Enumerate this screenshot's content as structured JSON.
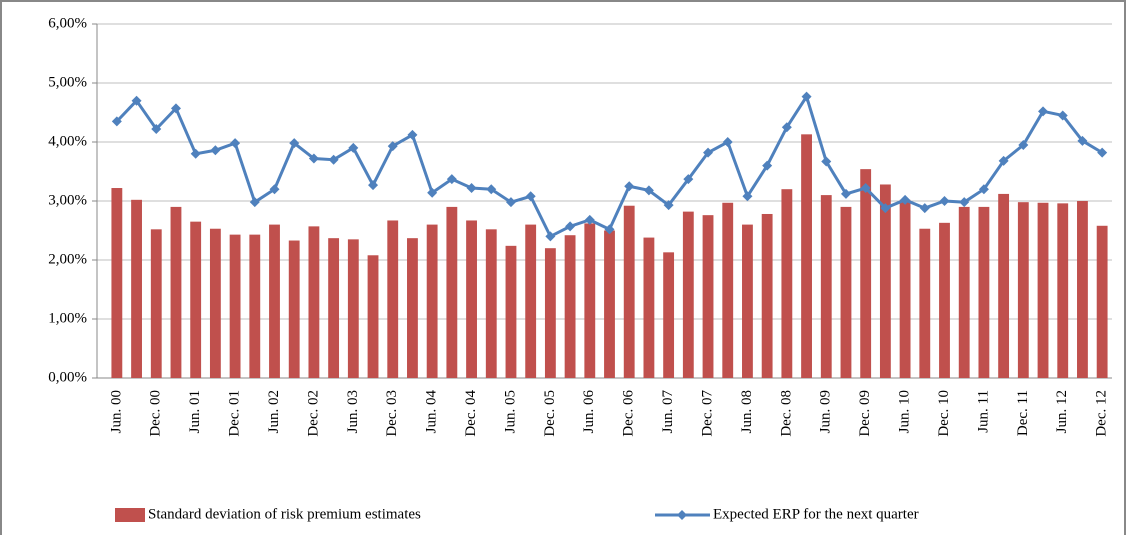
{
  "chart_data": {
    "type": "bar_line",
    "categories": [
      "Jun. 00",
      null,
      "Dec. 00",
      null,
      "Jun. 01",
      null,
      "Dec. 01",
      null,
      "Jun. 02",
      null,
      "Dec. 02",
      null,
      "Jun. 03",
      null,
      "Dec. 03",
      null,
      "Jun. 04",
      null,
      "Dec. 04",
      null,
      "Jun. 05",
      null,
      "Dec. 05",
      null,
      "Jun. 06",
      null,
      "Dec. 06",
      null,
      "Jun. 07",
      null,
      "Dec. 07",
      null,
      "Jun. 08",
      null,
      "Dec. 08",
      null,
      "Jun. 09",
      null,
      "Dec. 09",
      null,
      "Jun. 10",
      null,
      "Dec. 10",
      null,
      "Jun. 11",
      null,
      "Dec. 11",
      null,
      "Jun. 12",
      null,
      "Dec. 12"
    ],
    "series": [
      {
        "name": "Standard deviation of risk premium estimates",
        "kind": "bar",
        "color": "#c0504d",
        "values": [
          3.22,
          3.02,
          2.52,
          2.9,
          2.65,
          2.53,
          2.43,
          2.43,
          2.6,
          2.33,
          2.57,
          2.37,
          2.35,
          2.08,
          2.67,
          2.37,
          2.6,
          2.9,
          2.67,
          2.52,
          2.24,
          2.6,
          2.2,
          2.42,
          2.62,
          2.5,
          2.92,
          2.38,
          2.13,
          2.82,
          2.76,
          2.97,
          2.6,
          2.78,
          3.2,
          4.13,
          3.1,
          2.9,
          3.54,
          3.28,
          3.02,
          2.53,
          2.63,
          2.9,
          2.9,
          3.12,
          2.98,
          2.97,
          2.96,
          3.0,
          2.58
        ]
      },
      {
        "name": "Expected ERP for the next quarter",
        "kind": "line",
        "color": "#4f81bd",
        "values": [
          4.35,
          4.7,
          4.22,
          4.57,
          3.8,
          3.86,
          3.98,
          2.98,
          3.2,
          3.98,
          3.72,
          3.7,
          3.9,
          3.27,
          3.93,
          4.12,
          3.14,
          3.37,
          3.22,
          3.2,
          2.98,
          3.08,
          2.4,
          2.57,
          2.68,
          2.52,
          3.25,
          3.18,
          2.93,
          3.37,
          3.82,
          4.0,
          3.08,
          3.6,
          4.25,
          4.77,
          3.67,
          3.12,
          3.22,
          2.88,
          3.02,
          2.88,
          3.0,
          2.98,
          3.2,
          3.68,
          3.95,
          4.52,
          4.45,
          4.02,
          3.82
        ]
      }
    ],
    "ylim": [
      0,
      6
    ],
    "yticks": [
      {
        "value": 0,
        "label": "0,00%"
      },
      {
        "value": 1,
        "label": "1,00%"
      },
      {
        "value": 2,
        "label": "2,00%"
      },
      {
        "value": 3,
        "label": "3,00%"
      },
      {
        "value": 4,
        "label": "4,00%"
      },
      {
        "value": 5,
        "label": "5,00%"
      },
      {
        "value": 6,
        "label": "6,00%"
      }
    ],
    "grid": true,
    "legend": "bottom"
  }
}
